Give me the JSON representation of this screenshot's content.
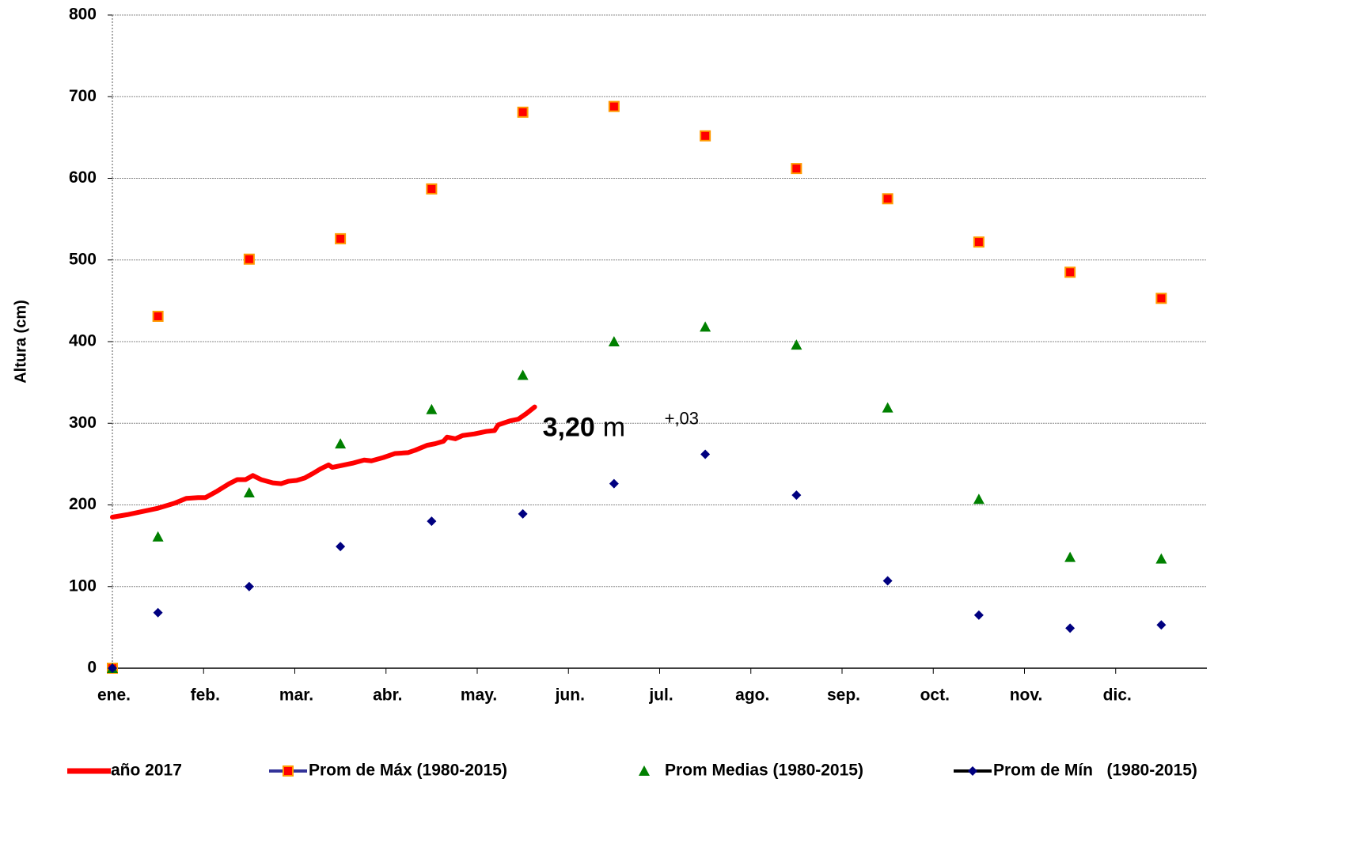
{
  "chart_data": {
    "type": "line-scatter",
    "y_label": "Altura (cm)",
    "ylim": [
      0,
      800
    ],
    "yticks": [
      0,
      100,
      200,
      300,
      400,
      500,
      600,
      700,
      800
    ],
    "xlim": [
      0,
      12
    ],
    "xticks": [
      {
        "value": 0,
        "label": "ene."
      },
      {
        "value": 1,
        "label": "feb."
      },
      {
        "value": 2,
        "label": "mar."
      },
      {
        "value": 3,
        "label": "abr."
      },
      {
        "value": 4,
        "label": "may."
      },
      {
        "value": 5,
        "label": "jun."
      },
      {
        "value": 6,
        "label": "jul."
      },
      {
        "value": 7,
        "label": "ago."
      },
      {
        "value": 8,
        "label": "sep."
      },
      {
        "value": 9,
        "label": "oct."
      },
      {
        "value": 10,
        "label": "nov."
      },
      {
        "value": 11,
        "label": "dic."
      }
    ],
    "grid": true,
    "legend": "bottom",
    "annotation": {
      "value": "3,20",
      "unit": "m",
      "change": "+,03"
    },
    "series": [
      {
        "name": "año 2017",
        "kind": "line",
        "color": "#ff0000",
        "x": [
          0,
          0.16,
          0.33,
          0.5,
          0.68,
          0.81,
          0.94,
          1.02,
          1.15,
          1.28,
          1.37,
          1.46,
          1.54,
          1.63,
          1.76,
          1.85,
          1.93,
          2.02,
          2.11,
          2.19,
          2.28,
          2.37,
          2.41,
          2.5,
          2.63,
          2.76,
          2.84,
          2.97,
          3.1,
          3.24,
          3.32,
          3.45,
          3.54,
          3.63,
          3.67,
          3.76,
          3.84,
          3.97,
          4.1,
          4.19,
          4.23,
          4.36,
          4.45,
          4.54,
          4.63
        ],
        "values": [
          185,
          188,
          192,
          196,
          202,
          208,
          209,
          209,
          217,
          226,
          231,
          231,
          236,
          231,
          227,
          226,
          229,
          230,
          233,
          238,
          244,
          249,
          246,
          248,
          251,
          255,
          254,
          258,
          263,
          264,
          267,
          273,
          275,
          278,
          283,
          281,
          285,
          287,
          290,
          291,
          298,
          303,
          305,
          312,
          320
        ]
      },
      {
        "name": "Prom de Máx (1980-2015)",
        "kind": "square",
        "color": "#ff0000",
        "edge_color": "#ff9900",
        "legend_line_color": "#333399",
        "x": [
          0,
          0.5,
          1.5,
          2.5,
          3.5,
          4.5,
          5.5,
          6.5,
          7.5,
          8.5,
          9.5,
          10.5,
          11.5
        ],
        "values": [
          0,
          431,
          501,
          526,
          587,
          681,
          688,
          652,
          612,
          575,
          522,
          485,
          453
        ]
      },
      {
        "name": "Prom Medias (1980-2015)",
        "kind": "triangle",
        "color": "#008000",
        "x": [
          0,
          0.5,
          1.5,
          2.5,
          3.5,
          4.5,
          5.5,
          6.5,
          7.5,
          8.5,
          9.5,
          10.5,
          11.5
        ],
        "values": [
          0,
          161,
          215,
          275,
          317,
          359,
          400,
          418,
          396,
          319,
          207,
          136,
          134
        ]
      },
      {
        "name": "Prom de Mín   (1980-2015)",
        "kind": "diamond",
        "color": "#000080",
        "legend_line_color": "#000000",
        "x": [
          0,
          0.5,
          1.5,
          2.5,
          3.5,
          4.5,
          5.5,
          6.5,
          7.5,
          8.5,
          9.5,
          10.5,
          11.5
        ],
        "values": [
          0,
          68,
          100,
          149,
          180,
          189,
          226,
          262,
          212,
          107,
          65,
          49,
          53
        ]
      }
    ]
  }
}
